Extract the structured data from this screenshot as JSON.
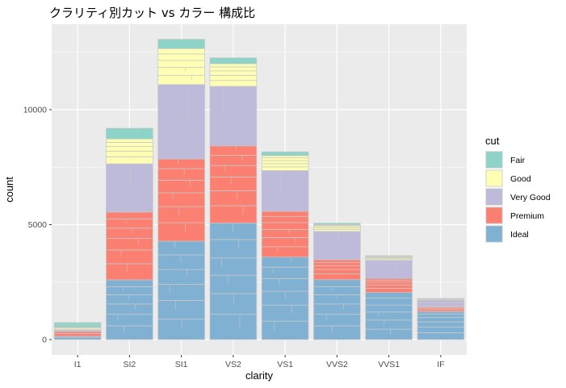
{
  "chart_data": {
    "type": "bar",
    "stacked": true,
    "title": "クラリティ別カット vs カラー 構成比",
    "xlabel": "clarity",
    "ylabel": "count",
    "categories": [
      "I1",
      "SI2",
      "SI1",
      "VS2",
      "VS1",
      "VVS2",
      "VVS1",
      "IF"
    ],
    "ylim": [
      0,
      13500
    ],
    "yticks": [
      0,
      5000,
      10000
    ],
    "ytick_labels": [
      "0",
      "5000",
      "10000"
    ],
    "grid": true,
    "legend_position": "right",
    "legend_title": "cut",
    "series": [
      {
        "name": "Ideal",
        "color": "#80B1D3",
        "values": [
          146,
          2598,
          4282,
          5071,
          3589,
          2606,
          2047,
          1212
        ],
        "subdivisions": [
          [
            100,
            46
          ],
          [
            600,
            500,
            450,
            400,
            350,
            298
          ],
          [
            900,
            800,
            700,
            650,
            632,
            600
          ],
          [
            1100,
            900,
            800,
            750,
            800,
            721
          ],
          [
            800,
            700,
            600,
            550,
            500,
            439
          ],
          [
            600,
            500,
            450,
            400,
            356,
            300
          ],
          [
            450,
            400,
            350,
            300,
            300,
            247
          ],
          [
            300,
            250,
            220,
            200,
            142,
            100
          ]
        ]
      },
      {
        "name": "Premium",
        "color": "#FB8072",
        "values": [
          205,
          2949,
          3575,
          3357,
          1989,
          870,
          616,
          230
        ],
        "subdivisions": [
          [
            120,
            85
          ],
          [
            700,
            600,
            500,
            450,
            400,
            299
          ],
          [
            800,
            700,
            600,
            550,
            500,
            425
          ],
          [
            750,
            650,
            600,
            500,
            450,
            407
          ],
          [
            450,
            400,
            350,
            300,
            270,
            219
          ],
          [
            250,
            200,
            160,
            130,
            130
          ],
          [
            180,
            150,
            120,
            90,
            76
          ],
          [
            80,
            70,
            50,
            30
          ]
        ]
      },
      {
        "name": "Very Good",
        "color": "#BEBADA",
        "values": [
          84,
          2100,
          3240,
          2591,
          1775,
          1235,
          789,
          268
        ],
        "subdivisions": [
          [
            50,
            34
          ],
          [
            2100
          ],
          [
            3240
          ],
          [
            2591
          ],
          [
            1775
          ],
          [
            1235
          ],
          [
            789
          ],
          [
            150,
            118
          ]
        ]
      },
      {
        "name": "Good",
        "color": "#FFFFB3",
        "values": [
          96,
          1081,
          1560,
          978,
          648,
          286,
          186,
          71
        ],
        "subdivisions": [
          [
            60,
            36
          ],
          [
            300,
            250,
            200,
            180,
            151
          ],
          [
            400,
            350,
            300,
            280,
            230
          ],
          [
            250,
            220,
            200,
            170,
            138
          ],
          [
            160,
            140,
            130,
            120,
            98
          ],
          [
            80,
            70,
            60,
            40,
            36
          ],
          [
            50,
            40,
            35,
            30,
            31
          ],
          [
            30,
            25,
            16
          ]
        ]
      },
      {
        "name": "Fair",
        "color": "#8DD3C7",
        "values": [
          210,
          466,
          408,
          261,
          170,
          69,
          17,
          9
        ],
        "subdivisions": [
          [
            120,
            90
          ],
          [
            466
          ],
          [
            408
          ],
          [
            261
          ],
          [
            170
          ],
          [
            69
          ],
          [
            17
          ],
          [
            9
          ]
        ]
      }
    ],
    "legend_order": [
      "Fair",
      "Good",
      "Very Good",
      "Premium",
      "Ideal"
    ]
  }
}
